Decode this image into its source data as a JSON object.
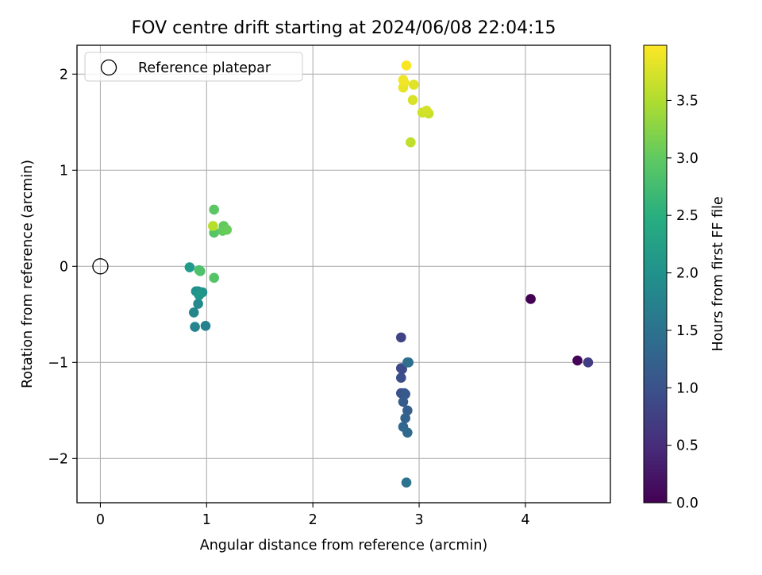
{
  "chart_data": {
    "type": "scatter",
    "title": "FOV centre drift starting at 2024/06/08 22:04:15",
    "xlabel": "Angular distance from reference (arcmin)",
    "ylabel": "Rotation from reference (arcmin)",
    "xlim": [
      -0.22,
      4.8
    ],
    "ylim": [
      -2.46,
      2.3
    ],
    "xticks": [
      0,
      1,
      2,
      3,
      4
    ],
    "yticks": [
      -2,
      -1,
      0,
      1,
      2
    ],
    "xtick_labels": [
      "0",
      "1",
      "2",
      "3",
      "4"
    ],
    "ytick_labels": [
      "−2",
      "−1",
      "0",
      "1",
      "2"
    ],
    "grid": true,
    "legend": {
      "placement": "top-left",
      "entries": [
        "Reference platepar"
      ]
    },
    "colormap": "viridis",
    "colorbar": {
      "label": "Hours from first FF file",
      "range": [
        0.0,
        3.98
      ],
      "ticks": [
        0.0,
        0.5,
        1.0,
        1.5,
        2.0,
        2.5,
        3.0,
        3.5
      ],
      "tick_labels": [
        "0.0",
        "0.5",
        "1.0",
        "1.5",
        "2.0",
        "2.5",
        "3.0",
        "3.5"
      ]
    },
    "reference_point": {
      "x": 0,
      "y": 0,
      "label": "Reference platepar"
    },
    "points": [
      {
        "x": 4.05,
        "y": -0.34,
        "c": 0.0
      },
      {
        "x": 4.49,
        "y": -0.98,
        "c": 0.05
      },
      {
        "x": 4.59,
        "y": -1.0,
        "c": 0.7
      },
      {
        "x": 2.83,
        "y": -0.74,
        "c": 0.8
      },
      {
        "x": 2.83,
        "y": -1.06,
        "c": 0.85
      },
      {
        "x": 2.84,
        "y": -1.07,
        "c": 0.9
      },
      {
        "x": 2.83,
        "y": -1.16,
        "c": 0.95
      },
      {
        "x": 2.83,
        "y": -1.32,
        "c": 1.0
      },
      {
        "x": 2.86,
        "y": -1.32,
        "c": 1.05
      },
      {
        "x": 2.87,
        "y": -1.33,
        "c": 1.1
      },
      {
        "x": 2.85,
        "y": -1.41,
        "c": 1.15
      },
      {
        "x": 2.89,
        "y": -1.5,
        "c": 1.2
      },
      {
        "x": 2.87,
        "y": -1.58,
        "c": 1.25
      },
      {
        "x": 2.85,
        "y": -1.67,
        "c": 1.3
      },
      {
        "x": 2.89,
        "y": -1.73,
        "c": 1.35
      },
      {
        "x": 2.89,
        "y": -1.0,
        "c": 1.4
      },
      {
        "x": 2.9,
        "y": -1.0,
        "c": 1.45
      },
      {
        "x": 2.88,
        "y": -2.25,
        "c": 1.5
      },
      {
        "x": 0.99,
        "y": -0.62,
        "c": 1.75
      },
      {
        "x": 0.89,
        "y": -0.63,
        "c": 1.8
      },
      {
        "x": 0.88,
        "y": -0.48,
        "c": 1.85
      },
      {
        "x": 0.92,
        "y": -0.39,
        "c": 1.9
      },
      {
        "x": 0.92,
        "y": -0.26,
        "c": 1.95
      },
      {
        "x": 0.9,
        "y": -0.26,
        "c": 2.0
      },
      {
        "x": 0.96,
        "y": -0.27,
        "c": 2.05
      },
      {
        "x": 0.93,
        "y": -0.3,
        "c": 2.1
      },
      {
        "x": 0.84,
        "y": -0.01,
        "c": 2.15
      },
      {
        "x": 0.93,
        "y": -0.04,
        "c": 2.8
      },
      {
        "x": 0.94,
        "y": -0.05,
        "c": 2.85
      },
      {
        "x": 1.07,
        "y": -0.12,
        "c": 2.9
      },
      {
        "x": 1.07,
        "y": 0.35,
        "c": 2.92
      },
      {
        "x": 1.07,
        "y": 0.59,
        "c": 2.95
      },
      {
        "x": 1.16,
        "y": 0.42,
        "c": 3.0
      },
      {
        "x": 1.15,
        "y": 0.37,
        "c": 3.02
      },
      {
        "x": 1.19,
        "y": 0.38,
        "c": 3.05
      },
      {
        "x": 1.06,
        "y": 0.42,
        "c": 3.55
      },
      {
        "x": 2.92,
        "y": 1.29,
        "c": 3.6
      },
      {
        "x": 3.09,
        "y": 1.59,
        "c": 3.65
      },
      {
        "x": 3.03,
        "y": 1.6,
        "c": 3.7
      },
      {
        "x": 3.07,
        "y": 1.62,
        "c": 3.72
      },
      {
        "x": 2.94,
        "y": 1.73,
        "c": 3.75
      },
      {
        "x": 2.95,
        "y": 1.89,
        "c": 3.8
      },
      {
        "x": 2.85,
        "y": 1.86,
        "c": 3.85
      },
      {
        "x": 2.86,
        "y": 1.91,
        "c": 3.88
      },
      {
        "x": 2.85,
        "y": 1.94,
        "c": 3.9
      },
      {
        "x": 2.88,
        "y": 2.09,
        "c": 3.95
      }
    ]
  }
}
